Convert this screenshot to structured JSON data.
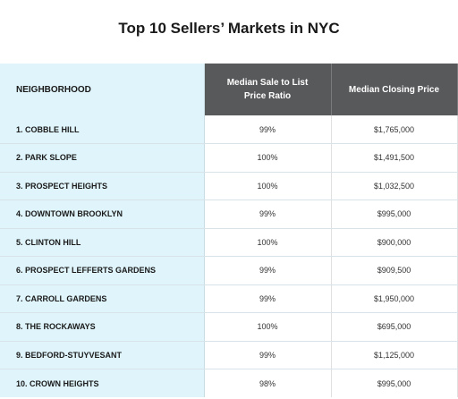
{
  "title": "Top 10 Sellers’ Markets in NYC",
  "columns": [
    "NEIGHBORHOOD",
    "Median Sale to List Price Ratio",
    "Median Closing Price"
  ],
  "rows": [
    {
      "name": "1.  COBBLE HILL",
      "ratio": "99%",
      "price": "$1,765,000"
    },
    {
      "name": "2.  PARK SLOPE",
      "ratio": "100%",
      "price": "$1,491,500"
    },
    {
      "name": "3.  PROSPECT HEIGHTS",
      "ratio": "100%",
      "price": "$1,032,500"
    },
    {
      "name": "4.  DOWNTOWN BROOKLYN",
      "ratio": "99%",
      "price": "$995,000"
    },
    {
      "name": "5.  CLINTON HILL",
      "ratio": "100%",
      "price": "$900,000"
    },
    {
      "name": "6.  PROSPECT LEFFERTS GARDENS",
      "ratio": "99%",
      "price": "$909,500"
    },
    {
      "name": "7.  CARROLL GARDENS",
      "ratio": "99%",
      "price": "$1,950,000"
    },
    {
      "name": "8.  THE ROCKAWAYS",
      "ratio": "100%",
      "price": "$695,000"
    },
    {
      "name": "9.  BEDFORD-STUYVESANT",
      "ratio": "99%",
      "price": "$1,125,000"
    },
    {
      "name": "10.  CROWN HEIGHTS",
      "ratio": "98%",
      "price": "$995,000"
    }
  ]
}
